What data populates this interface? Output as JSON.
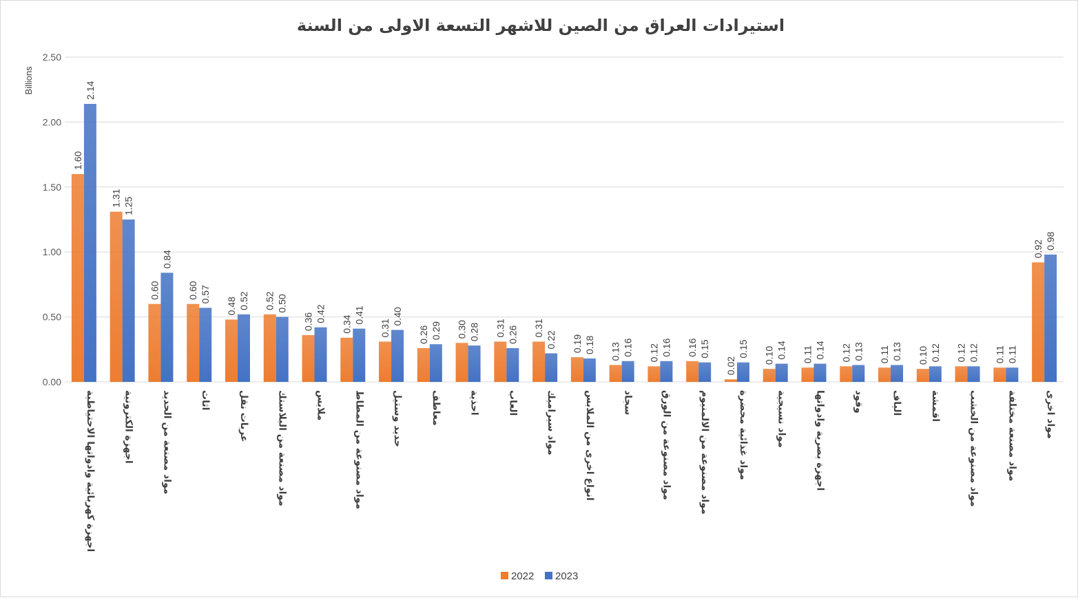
{
  "chart_data": {
    "type": "bar",
    "title": "استيرادات العراق من الصين للاشهر التسعة الاولى من السنة",
    "ylabel": "Billions",
    "xlabel": "",
    "ylim": [
      0,
      2.5
    ],
    "yticks": [
      "0.00",
      "0.50",
      "1.00",
      "1.50",
      "2.00",
      "2.50"
    ],
    "grid": true,
    "legend_position": "bottom",
    "categories": [
      "اجهزة كهربائية وادواتها الاحتياطية",
      "اجهزة الكترونية",
      "مواد مصنعة من الحديد",
      "اثاث",
      "عربات نقل",
      "مواد مصنعة من البلاستك",
      "ملابس",
      "مواد مصنوعة من المطاط",
      "حديد وستيل",
      "معاطف",
      "احذية",
      "العاب",
      "مواد سيراميك",
      "انواع اخرى من الملابس",
      "سجاد",
      "مواد مصنوعة من الورق",
      "مواد مصنوعة من الالمنيوم",
      "مواد غذائية محضرة",
      "مواد نسيجية",
      "اجهزة بصرية وادواتها",
      "وقود",
      "الياف",
      "اقمشة",
      "مواد مصنوعة من الخشب",
      "مواد مصنعة مختلفة",
      "مواد اخرى"
    ],
    "series": [
      {
        "name": "2022",
        "color": "#ED7D31",
        "values": [
          1.6,
          1.31,
          0.6,
          0.6,
          0.48,
          0.52,
          0.36,
          0.34,
          0.31,
          0.26,
          0.3,
          0.31,
          0.31,
          0.19,
          0.13,
          0.12,
          0.16,
          0.02,
          0.1,
          0.11,
          0.12,
          0.11,
          0.1,
          0.12,
          0.11,
          0.92
        ]
      },
      {
        "name": "2023",
        "color": "#4472C4",
        "values": [
          2.14,
          1.25,
          0.84,
          0.57,
          0.52,
          0.5,
          0.42,
          0.41,
          0.4,
          0.29,
          0.28,
          0.26,
          0.22,
          0.18,
          0.16,
          0.16,
          0.15,
          0.15,
          0.14,
          0.14,
          0.13,
          0.13,
          0.12,
          0.12,
          0.11,
          0.98
        ]
      }
    ]
  }
}
